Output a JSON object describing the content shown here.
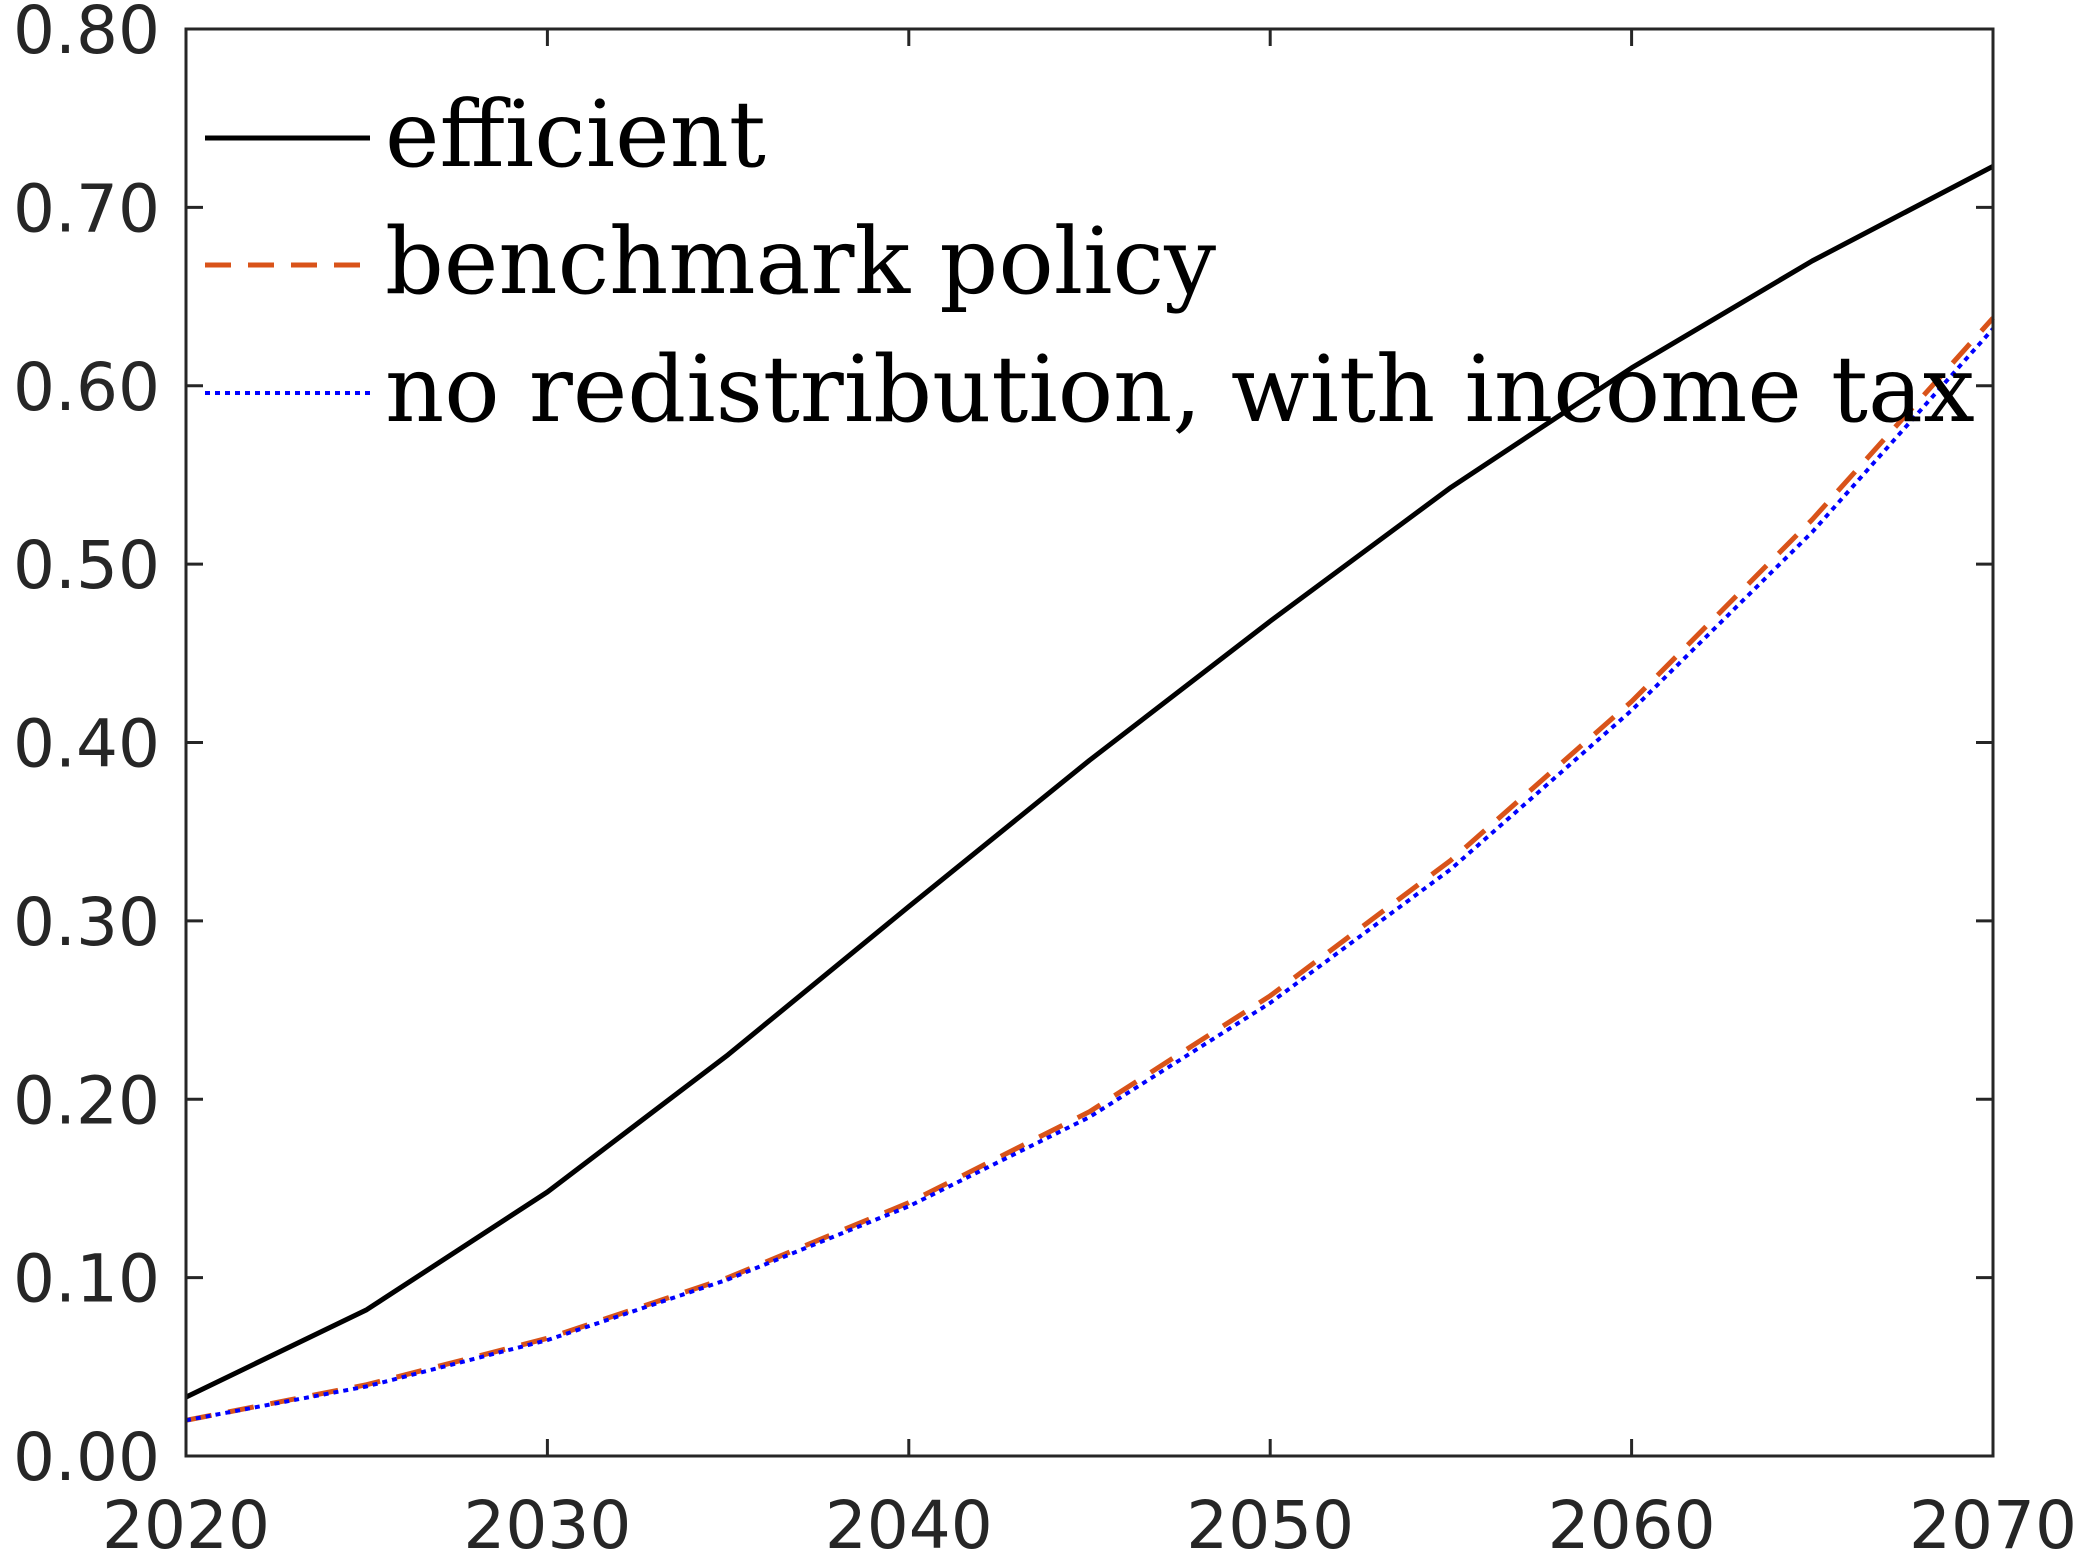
{
  "chart_data": {
    "type": "line",
    "title": "",
    "xlabel": "",
    "ylabel": "",
    "xlim": [
      2020,
      2070
    ],
    "ylim": [
      0.0,
      0.8
    ],
    "xticks": [
      2020,
      2030,
      2040,
      2050,
      2060,
      2070
    ],
    "xtick_labels": [
      "2020",
      "2030",
      "2040",
      "2050",
      "2060",
      "2070"
    ],
    "yticks": [
      0.0,
      0.1,
      0.2,
      0.3,
      0.4,
      0.5,
      0.6,
      0.7,
      0.8
    ],
    "ytick_labels": [
      "0.00",
      "0.10",
      "0.20",
      "0.30",
      "0.40",
      "0.50",
      "0.60",
      "0.70",
      "0.80"
    ],
    "grid": false,
    "legend_position": "top-left",
    "x": [
      2020,
      2025,
      2030,
      2035,
      2040,
      2045,
      2050,
      2055,
      2060,
      2065,
      2070
    ],
    "series": [
      {
        "name": "efficient",
        "color": "#000000",
        "style": "solid",
        "values": [
          0.033,
          0.082,
          0.148,
          0.225,
          0.308,
          0.39,
          0.468,
          0.543,
          0.61,
          0.67,
          0.723
        ]
      },
      {
        "name": "benchmark policy",
        "color": "#D95319",
        "style": "dashed",
        "values": [
          0.02,
          0.04,
          0.066,
          0.1,
          0.142,
          0.193,
          0.258,
          0.334,
          0.423,
          0.525,
          0.638
        ]
      },
      {
        "name": "no redistribution, with income tax",
        "color": "#0000FF",
        "style": "dotted",
        "values": [
          0.02,
          0.039,
          0.065,
          0.099,
          0.14,
          0.19,
          0.254,
          0.329,
          0.418,
          0.518,
          0.632
        ]
      }
    ]
  }
}
